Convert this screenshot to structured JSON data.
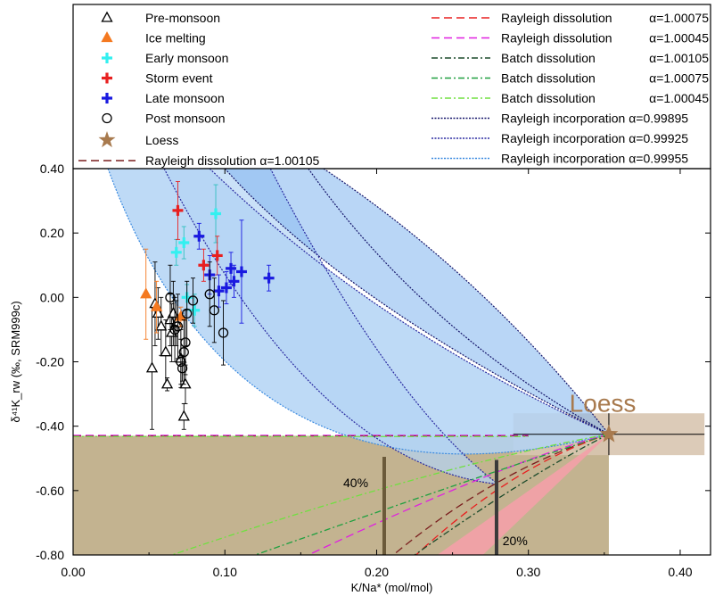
{
  "chart_data": {
    "type": "scatter",
    "xlabel": "K/Na* (mol/mol)",
    "ylabel": "δ⁴¹K_rw (‰, SRM999c)",
    "xlim": [
      0.0,
      0.42
    ],
    "ylim": [
      -0.8,
      0.4
    ],
    "x_ticks": [
      "0.00",
      "0.10",
      "0.20",
      "0.30",
      "0.40"
    ],
    "y_ticks": [
      "0.40",
      "0.20",
      "0.00",
      "-0.20",
      "-0.40",
      "-0.60",
      "-0.80"
    ],
    "grid": false,
    "legend_position": "top",
    "colors": {
      "shade_light": "#b3d4f5",
      "shade_dark": "#7fb4ee",
      "loess_box": "#d8c5b0",
      "tan": "#b9a67c",
      "pink": "#f4a0a8",
      "loess_star": "#a87a4e",
      "bar": "#6b5a3a"
    },
    "legend": {
      "markers": [
        {
          "label": "Pre-monsoon",
          "symbol": "triangle-open",
          "color": "#000000"
        },
        {
          "label": "Ice melting",
          "symbol": "triangle-filled",
          "color": "#f47920"
        },
        {
          "label": "Early monsoon",
          "symbol": "cross",
          "color": "#33f0f0"
        },
        {
          "label": "Storm event",
          "symbol": "cross",
          "color": "#e82020"
        },
        {
          "label": "Late monsoon",
          "symbol": "cross",
          "color": "#1a1ae0"
        },
        {
          "label": "Post monsoon",
          "symbol": "circle-open",
          "color": "#000000"
        },
        {
          "label": "Loess",
          "symbol": "star",
          "color": "#a87a4e"
        }
      ],
      "bottom_line": {
        "label": "Rayleigh dissolution α=1.00105",
        "color": "#7a1e1e",
        "dash": "long"
      },
      "lines": [
        {
          "label": "Rayleigh dissolution",
          "alpha": "α=1.00075",
          "color": "#e82020",
          "dash": "long"
        },
        {
          "label": "Rayleigh dissolution",
          "alpha": "α=1.00045",
          "color": "#e020e0",
          "dash": "long"
        },
        {
          "label": "Batch dissolution",
          "alpha": "α=1.00105",
          "color": "#1b4a2a",
          "dash": "dashdot"
        },
        {
          "label": "Batch dissolution",
          "alpha": "α=1.00075",
          "color": "#20a040",
          "dash": "dashdot"
        },
        {
          "label": "Batch dissolution",
          "alpha": "α=1.00045",
          "color": "#70e040",
          "dash": "dashdot"
        },
        {
          "label": "Rayleigh incorporation α=0.99895",
          "alpha": "",
          "color": "#15156a",
          "dash": "dotted"
        },
        {
          "label": "Rayleigh incorporation α=0.99925",
          "alpha": "",
          "color": "#2a2aa0",
          "dash": "dotted"
        },
        {
          "label": "Rayleigh incorporation α=0.99955",
          "alpha": "",
          "color": "#3a8ae0",
          "dash": "dotted"
        }
      ]
    },
    "annotations": {
      "loess": "Loess",
      "pct40": "40%",
      "pct20": "20%"
    },
    "loess_point": {
      "x": 0.353,
      "y": -0.425,
      "xerr": 0.063,
      "yerr": 0.065
    },
    "series": [
      {
        "name": "Pre-monsoon",
        "symbol": "triangle-open",
        "color": "#000000",
        "points": [
          {
            "x": 0.052,
            "y": -0.22,
            "err": 0.19
          },
          {
            "x": 0.054,
            "y": -0.02,
            "err": 0.13
          },
          {
            "x": 0.056,
            "y": -0.05,
            "err": 0.08
          },
          {
            "x": 0.058,
            "y": -0.09,
            "err": 0.09
          },
          {
            "x": 0.061,
            "y": -0.17,
            "err": 0.1
          },
          {
            "x": 0.062,
            "y": -0.27,
            "err": 0.02
          },
          {
            "x": 0.064,
            "y": -0.07,
            "err": 0.08
          },
          {
            "x": 0.065,
            "y": -0.11,
            "err": 0.09
          },
          {
            "x": 0.066,
            "y": -0.05,
            "err": 0.1
          },
          {
            "x": 0.068,
            "y": -0.08,
            "err": 0.07
          },
          {
            "x": 0.071,
            "y": -0.19,
            "err": 0.09
          },
          {
            "x": 0.073,
            "y": -0.37,
            "err": 0.04
          },
          {
            "x": 0.074,
            "y": -0.27,
            "err": 0.06
          }
        ]
      },
      {
        "name": "Ice melting",
        "symbol": "triangle-filled",
        "color": "#f47920",
        "points": [
          {
            "x": 0.048,
            "y": 0.01,
            "err": 0.14
          },
          {
            "x": 0.055,
            "y": -0.03,
            "err": 0.08
          },
          {
            "x": 0.071,
            "y": -0.06,
            "err": 0.03
          }
        ]
      },
      {
        "name": "Early monsoon",
        "symbol": "cross",
        "color": "#33f0f0",
        "points": [
          {
            "x": 0.068,
            "y": 0.14,
            "err": 0.04
          },
          {
            "x": 0.073,
            "y": 0.17,
            "err": 0.05
          },
          {
            "x": 0.075,
            "y": 0.0,
            "err": 0.04
          },
          {
            "x": 0.08,
            "y": -0.04,
            "err": 0.05
          },
          {
            "x": 0.094,
            "y": 0.26,
            "err": 0.09
          }
        ]
      },
      {
        "name": "Storm event",
        "symbol": "cross",
        "color": "#e82020",
        "points": [
          {
            "x": 0.069,
            "y": 0.27,
            "err": 0.09
          },
          {
            "x": 0.086,
            "y": 0.1,
            "err": 0.05
          },
          {
            "x": 0.095,
            "y": 0.13,
            "err": 0.06
          }
        ]
      },
      {
        "name": "Late monsoon",
        "symbol": "cross",
        "color": "#1a1ae0",
        "points": [
          {
            "x": 0.083,
            "y": 0.19,
            "err": 0.04
          },
          {
            "x": 0.09,
            "y": 0.07,
            "err": 0.06
          },
          {
            "x": 0.096,
            "y": 0.02,
            "err": 0.05
          },
          {
            "x": 0.101,
            "y": 0.03,
            "err": 0.05
          },
          {
            "x": 0.104,
            "y": 0.09,
            "err": 0.05
          },
          {
            "x": 0.106,
            "y": 0.05,
            "err": 0.05
          },
          {
            "x": 0.111,
            "y": 0.08,
            "err": 0.16
          },
          {
            "x": 0.129,
            "y": 0.06,
            "err": 0.04
          }
        ]
      },
      {
        "name": "Post monsoon",
        "symbol": "circle-open",
        "color": "#000000",
        "points": [
          {
            "x": 0.064,
            "y": 0.0,
            "err": 0.1
          },
          {
            "x": 0.067,
            "y": -0.1,
            "err": 0.1
          },
          {
            "x": 0.069,
            "y": -0.09,
            "err": 0.1
          },
          {
            "x": 0.071,
            "y": -0.2,
            "err": 0.07
          },
          {
            "x": 0.072,
            "y": -0.22,
            "err": 0.04
          },
          {
            "x": 0.073,
            "y": -0.17,
            "err": 0.1
          },
          {
            "x": 0.074,
            "y": -0.14,
            "err": 0.1
          },
          {
            "x": 0.075,
            "y": -0.05,
            "err": 0.1
          },
          {
            "x": 0.079,
            "y": -0.01,
            "err": 0.07
          },
          {
            "x": 0.09,
            "y": 0.01,
            "err": 0.1
          },
          {
            "x": 0.093,
            "y": -0.04,
            "err": 0.1
          },
          {
            "x": 0.099,
            "y": -0.11,
            "err": 0.1
          }
        ]
      }
    ]
  }
}
